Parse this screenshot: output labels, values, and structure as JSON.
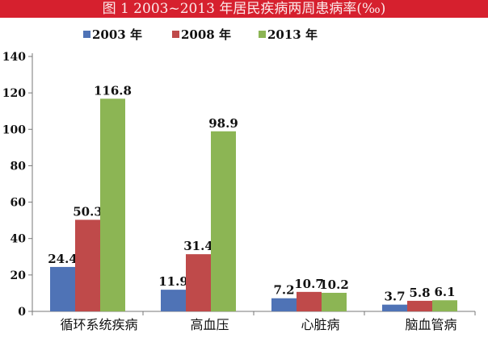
{
  "chart_data": {
    "type": "bar",
    "title": "图 1  2003~2013 年居民疾病两周患病率(‰)",
    "categories": [
      "循环系统疾病",
      "高血压",
      "心脏病",
      "脑血管病"
    ],
    "series": [
      {
        "name": "2003 年",
        "color": "#4f73b6",
        "values": [
          24.4,
          11.9,
          7.2,
          3.7
        ]
      },
      {
        "name": "2008 年",
        "color": "#bf4a4a",
        "values": [
          50.3,
          31.4,
          10.7,
          5.8
        ]
      },
      {
        "name": "2013 年",
        "color": "#8cb554",
        "values": [
          116.8,
          98.9,
          10.2,
          6.1
        ]
      }
    ],
    "ylim": [
      0,
      140
    ],
    "yticks": [
      0,
      20,
      40,
      60,
      80,
      100,
      120,
      140
    ],
    "xlabel": "",
    "ylabel": "",
    "legend": "top-center",
    "grid": false
  }
}
